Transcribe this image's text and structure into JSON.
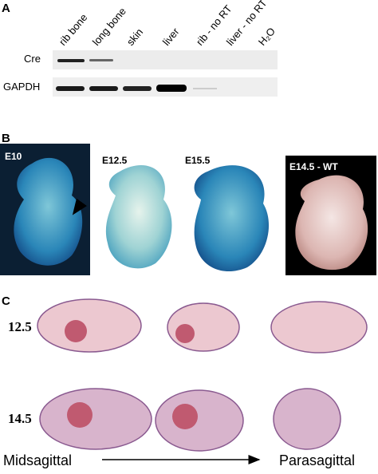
{
  "panel_a": {
    "label": "A",
    "lanes": [
      "rib bone",
      "long bone",
      "skin",
      "liver",
      "rib - no RT",
      "liver - no RT",
      "H₂O"
    ],
    "rows": [
      "Cre",
      "GAPDH"
    ]
  },
  "panel_b": {
    "label": "B",
    "images": [
      "E10",
      "E12.5",
      "E15.5",
      "E14.5 - WT"
    ]
  },
  "panel_c": {
    "label": "C",
    "rows": [
      "12.5",
      "14.5"
    ],
    "start": "Midsagittal",
    "end": "Parasagittal"
  }
}
